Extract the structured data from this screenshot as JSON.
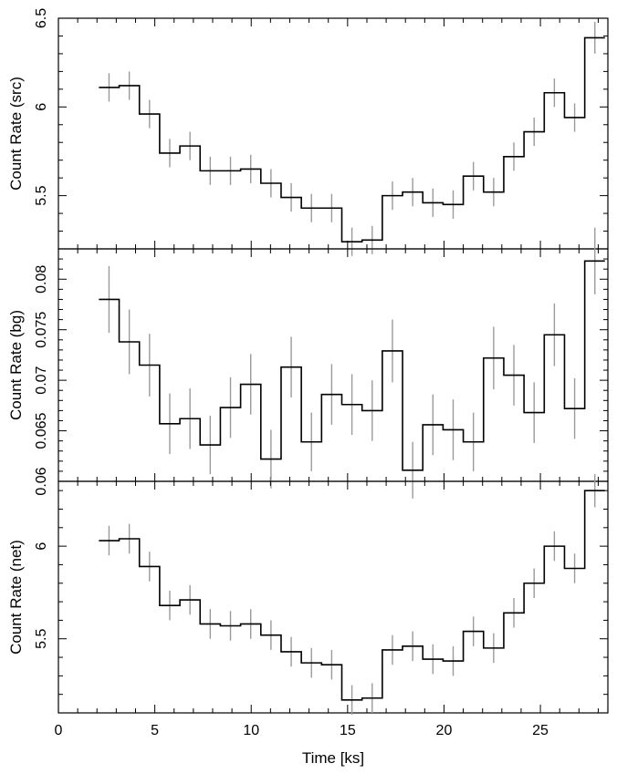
{
  "chart_data": [
    {
      "type": "line",
      "ylabel": "Count Rate (src)",
      "xlim": [
        0,
        28.5
      ],
      "ylim": [
        5.2,
        6.5
      ],
      "x_ticks": [
        0,
        5,
        10,
        15,
        20,
        25
      ],
      "y_ticks": [
        5.5,
        6,
        6.5
      ],
      "x": [
        2.625,
        3.675,
        4.725,
        5.775,
        6.825,
        7.875,
        8.925,
        9.975,
        11.025,
        12.075,
        13.125,
        14.175,
        15.225,
        16.275,
        17.325,
        18.375,
        19.425,
        20.475,
        21.525,
        22.575,
        23.625,
        24.675,
        25.725,
        26.775,
        27.825
      ],
      "y": [
        6.11,
        6.12,
        5.96,
        5.74,
        5.78,
        5.64,
        5.64,
        5.65,
        5.57,
        5.49,
        5.43,
        5.43,
        5.24,
        5.25,
        5.5,
        5.52,
        5.46,
        5.45,
        5.61,
        5.52,
        5.72,
        5.86,
        6.08,
        5.94,
        6.39
      ],
      "yerr": [
        0.08,
        0.08,
        0.08,
        0.08,
        0.08,
        0.08,
        0.08,
        0.08,
        0.08,
        0.08,
        0.08,
        0.08,
        0.08,
        0.08,
        0.08,
        0.08,
        0.08,
        0.08,
        0.08,
        0.08,
        0.08,
        0.08,
        0.08,
        0.08,
        0.09
      ]
    },
    {
      "type": "line",
      "ylabel": "Count Rate (bg)",
      "xlim": [
        0,
        28.5
      ],
      "ylim": [
        0.06,
        0.083
      ],
      "x_ticks": [
        0,
        5,
        10,
        15,
        20,
        25
      ],
      "y_ticks": [
        0.06,
        0.065,
        0.07,
        0.075,
        0.08
      ],
      "x": [
        2.625,
        3.675,
        4.725,
        5.775,
        6.825,
        7.875,
        8.925,
        9.975,
        11.025,
        12.075,
        13.125,
        14.175,
        15.225,
        16.275,
        17.325,
        18.375,
        19.425,
        20.475,
        21.525,
        22.575,
        23.625,
        24.675,
        25.725,
        26.775,
        27.825
      ],
      "y": [
        0.078,
        0.0738,
        0.0715,
        0.0657,
        0.0662,
        0.0636,
        0.0673,
        0.0696,
        0.0622,
        0.0713,
        0.0639,
        0.0686,
        0.0676,
        0.067,
        0.0729,
        0.0611,
        0.0656,
        0.0651,
        0.0639,
        0.0722,
        0.0705,
        0.0668,
        0.0745,
        0.0672,
        0.0818
      ],
      "yerr": [
        0.0033,
        0.0032,
        0.0031,
        0.003,
        0.003,
        0.0029,
        0.003,
        0.003,
        0.0029,
        0.003,
        0.0029,
        0.003,
        0.003,
        0.003,
        0.0031,
        0.0028,
        0.003,
        0.003,
        0.0029,
        0.0031,
        0.003,
        0.003,
        0.0031,
        0.003,
        0.0033
      ]
    },
    {
      "type": "line",
      "ylabel": "Count Rate (net)",
      "xlim": [
        0,
        28.5
      ],
      "ylim": [
        5.1,
        6.35
      ],
      "x_ticks": [
        0,
        5,
        10,
        15,
        20,
        25
      ],
      "y_ticks": [
        5.5,
        6
      ],
      "xlabel": "Time [ks]",
      "x": [
        2.625,
        3.675,
        4.725,
        5.775,
        6.825,
        7.875,
        8.925,
        9.975,
        11.025,
        12.075,
        13.125,
        14.175,
        15.225,
        16.275,
        17.325,
        18.375,
        19.425,
        20.475,
        21.525,
        22.575,
        23.625,
        24.675,
        25.725,
        26.775,
        27.825
      ],
      "y": [
        6.03,
        6.04,
        5.89,
        5.68,
        5.71,
        5.58,
        5.57,
        5.58,
        5.52,
        5.43,
        5.37,
        5.36,
        5.17,
        5.18,
        5.44,
        5.46,
        5.39,
        5.38,
        5.54,
        5.45,
        5.64,
        5.8,
        6.0,
        5.88,
        6.3
      ],
      "yerr": [
        0.08,
        0.08,
        0.08,
        0.08,
        0.08,
        0.08,
        0.08,
        0.08,
        0.08,
        0.08,
        0.08,
        0.08,
        0.08,
        0.08,
        0.08,
        0.08,
        0.08,
        0.08,
        0.08,
        0.08,
        0.08,
        0.08,
        0.08,
        0.08,
        0.09
      ]
    }
  ]
}
